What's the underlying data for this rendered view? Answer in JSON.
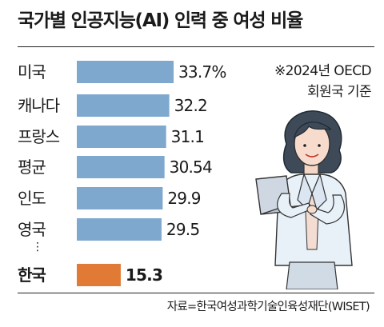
{
  "title": "국가별 인공지능(AI) 인력 중 여성 비율",
  "note": {
    "line1": "※2024년 OECD",
    "line2": "회원국 기준"
  },
  "source": "자료=한국여성과학기술인육성재단(WISET)",
  "ellipsis": "⋮",
  "colors": {
    "bar": "#7fa8cf",
    "highlight_bar": "#e07a35"
  },
  "chart_data": {
    "type": "bar",
    "orientation": "horizontal",
    "categories": [
      "미국",
      "캐나다",
      "프랑스",
      "평균",
      "인도",
      "영국",
      "한국"
    ],
    "values": [
      33.7,
      32.2,
      31.1,
      30.54,
      29.9,
      29.5,
      15.3
    ],
    "value_labels": [
      "33.7%",
      "32.2",
      "31.1",
      "30.54",
      "29.9",
      "29.5",
      "15.3"
    ],
    "highlight": "한국",
    "xlim": [
      0,
      33.7
    ]
  }
}
